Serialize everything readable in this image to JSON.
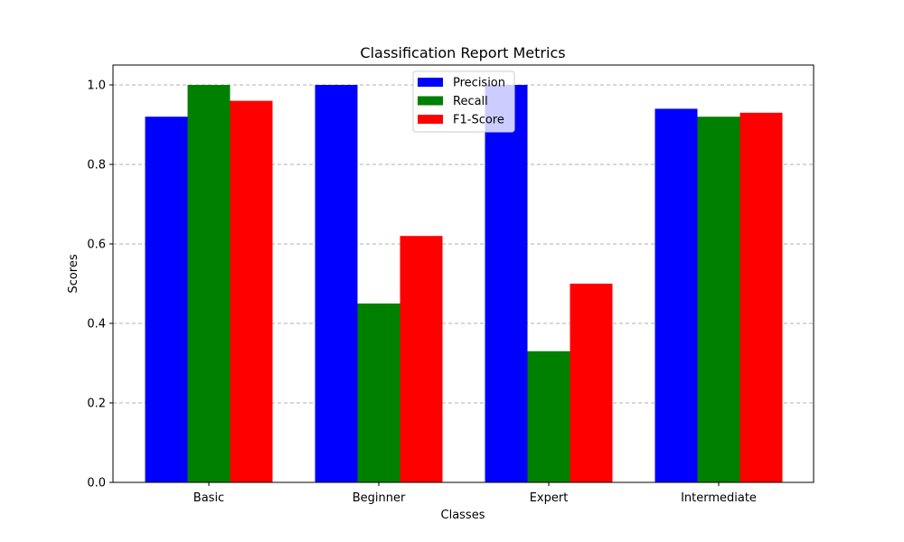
{
  "chart_data": {
    "type": "bar",
    "title": "Classification Report Metrics",
    "xlabel": "Classes",
    "ylabel": "Scores",
    "categories": [
      "Basic",
      "Beginner",
      "Expert",
      "Intermediate"
    ],
    "series": [
      {
        "name": "Precision",
        "values": [
          0.92,
          1.0,
          1.0,
          0.94
        ],
        "color": "#0000ff"
      },
      {
        "name": "Recall",
        "values": [
          1.0,
          0.45,
          0.33,
          0.92
        ],
        "color": "#008000"
      },
      {
        "name": "F1-Score",
        "values": [
          0.96,
          0.62,
          0.5,
          0.93
        ],
        "color": "#ff0000"
      }
    ],
    "ylim": [
      0,
      1.05
    ],
    "yticks": [
      "0.0",
      "0.2",
      "0.4",
      "0.6",
      "0.8",
      "1.0"
    ],
    "grid": "y-dashed",
    "legend_position": "top-center"
  }
}
